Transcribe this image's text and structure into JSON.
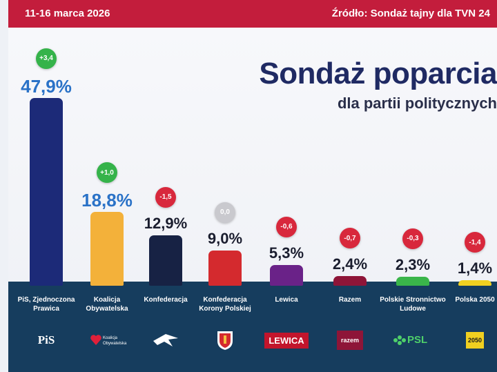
{
  "header": {
    "date": "11-16 marca 2026",
    "source": "Źródło: Sondaż tajny dla TVN 24"
  },
  "chart_data": {
    "type": "bar",
    "title": "Sondaż poparcia",
    "subtitle": "dla partii politycznych",
    "categories": [
      "PiS, Zjednoczona Prawica",
      "Koalicja Obywatelska",
      "Konfederacja",
      "Konfederacja Korony Polskiej",
      "Lewica",
      "Razem",
      "Polskie Stronnictwo Ludowe",
      "Polska 2050"
    ],
    "values": [
      47.9,
      18.8,
      12.9,
      9.0,
      5.3,
      2.4,
      2.3,
      1.4
    ],
    "value_labels": [
      "47,9%",
      "18,8%",
      "12,9%",
      "9,0%",
      "5,3%",
      "2,4%",
      "2,3%",
      "1,4%"
    ],
    "changes": [
      "+3,4",
      "+1,0",
      "-1,5",
      "0,0",
      "-0,6",
      "-0,7",
      "-0,3",
      "-1,4"
    ],
    "colors": [
      "#1c2a78",
      "#f3b13a",
      "#172244",
      "#d42a2e",
      "#6a2288",
      "#8e1538",
      "#3ab54a",
      "#f0d020"
    ],
    "ylim": [
      0,
      50
    ]
  },
  "logos": [
    {
      "text": "PiS",
      "icon": "pis-logo",
      "fg": "#ffffff",
      "bg": ""
    },
    {
      "text": "Koalicja Obywatelska",
      "icon": "ko-heart-logo",
      "fg": "#ffffff",
      "bg": ""
    },
    {
      "text": "",
      "icon": "konfederacja-eagle-logo",
      "fg": "#ffffff",
      "bg": ""
    },
    {
      "text": "",
      "icon": "kkp-crest-logo",
      "fg": "#ffffff",
      "bg": ""
    },
    {
      "text": "LEWICA",
      "icon": "lewica-logo",
      "fg": "#ffffff",
      "bg": "#c2152c"
    },
    {
      "text": "razem",
      "icon": "razem-logo",
      "fg": "#ffffff",
      "bg": "#8e1538"
    },
    {
      "text": "PSL",
      "icon": "psl-clover-logo",
      "fg": "#4fd06a",
      "bg": ""
    },
    {
      "text": "2050",
      "icon": "polska2050-logo",
      "fg": "#1a1a1a",
      "bg": "#f0d020"
    }
  ]
}
